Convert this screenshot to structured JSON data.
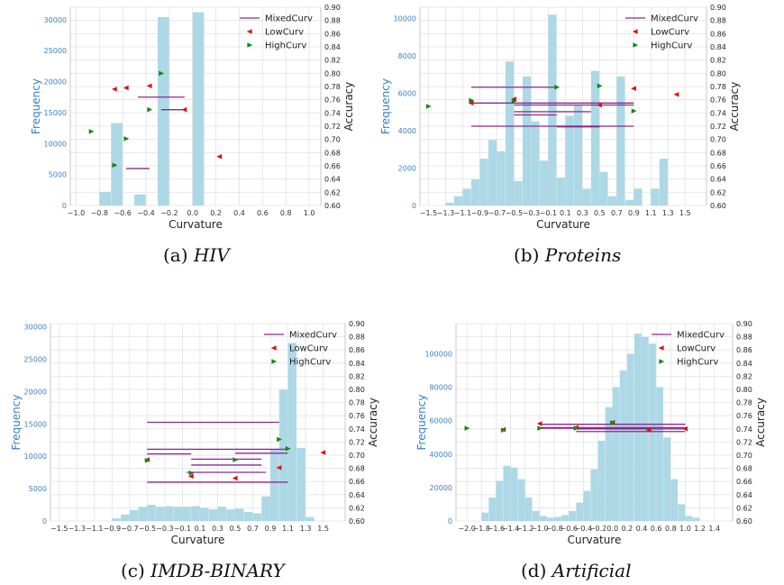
{
  "chart_data": [
    {
      "id": "a",
      "type": "bar",
      "caption_letter": "(a)",
      "caption_name": "HIV",
      "xlabel": "Curvature",
      "ylabel_left": "Frequency",
      "ylabel_right": "Accuracy",
      "xlim": [
        -1.05,
        1.1
      ],
      "ylim_left": [
        0,
        32000
      ],
      "ylim_right": [
        0.6,
        0.9
      ],
      "xticks": [
        -1.0,
        -0.8,
        -0.6,
        -0.4,
        -0.2,
        0.0,
        0.2,
        0.4,
        0.6,
        0.8,
        1.0
      ],
      "xtick_labels": [
        "−1.0",
        "−0.8",
        "−0.6",
        "−0.4",
        "−0.2",
        "0.0",
        "0.2",
        "0.4",
        "0.6",
        "0.8",
        "1.0"
      ],
      "yticks_left": [
        0,
        5000,
        10000,
        15000,
        20000,
        25000,
        30000
      ],
      "yticks_right": [
        0.6,
        0.62,
        0.64,
        0.66,
        0.68,
        0.7,
        0.72,
        0.74,
        0.76,
        0.78,
        0.8,
        0.82,
        0.84,
        0.86,
        0.88,
        0.9
      ],
      "ytick_right_labels": [
        "0.60",
        "0.62",
        "0.64",
        "0.66",
        "0.68",
        "0.70",
        "0.72",
        "0.74",
        "0.76",
        "0.78",
        "0.80",
        "0.82",
        "0.84",
        "0.86",
        "0.88",
        "0.90"
      ],
      "grid": true,
      "legend": [
        "MixedCurv",
        "LowCurv",
        "HighCurv"
      ],
      "legend_position": "top-right",
      "bin_width": 0.1,
      "histogram": [
        [
          -0.75,
          2200
        ],
        [
          -0.65,
          13300
        ],
        [
          -0.45,
          1800
        ],
        [
          -0.25,
          30400
        ],
        [
          0.05,
          31200
        ]
      ],
      "mixed": [
        [
          -0.57,
          -0.37,
          0.656
        ],
        [
          -0.47,
          -0.07,
          0.764
        ],
        [
          -0.27,
          -0.07,
          0.745
        ]
      ],
      "low": [
        [
          -0.67,
          0.776
        ],
        [
          -0.57,
          0.778
        ],
        [
          -0.37,
          0.781
        ],
        [
          -0.07,
          0.745
        ],
        [
          0.23,
          0.674
        ]
      ],
      "high": [
        [
          -0.87,
          0.712
        ],
        [
          -0.67,
          0.661
        ],
        [
          -0.57,
          0.701
        ],
        [
          -0.37,
          0.745
        ],
        [
          -0.27,
          0.8
        ]
      ]
    },
    {
      "id": "b",
      "type": "bar",
      "caption_letter": "(b)",
      "caption_name": "Proteins",
      "xlabel": "Curvature",
      "ylabel_left": "Frequency",
      "ylabel_right": "Accuracy",
      "xlim": [
        -1.6,
        1.75
      ],
      "ylim_left": [
        0,
        10600
      ],
      "ylim_right": [
        0.6,
        0.9
      ],
      "xticks": [
        -1.5,
        -1.3,
        -1.1,
        -0.9,
        -0.7,
        -0.5,
        -0.3,
        -0.1,
        0.1,
        0.3,
        0.5,
        0.7,
        0.9,
        1.1,
        1.3,
        1.5
      ],
      "xtick_labels": [
        "−1.5",
        "−1.3",
        "−1.1",
        "−0.9",
        "−0.7",
        "−0.5",
        "−0.3",
        "−0.1",
        "0.1",
        "0.3",
        "0.5",
        "0.7",
        "0.9",
        "1.1",
        "1.3",
        "1.5"
      ],
      "yticks_left": [
        0,
        2000,
        4000,
        6000,
        8000,
        10000
      ],
      "yticks_right": [
        0.6,
        0.62,
        0.64,
        0.66,
        0.68,
        0.7,
        0.72,
        0.74,
        0.76,
        0.78,
        0.8,
        0.82,
        0.84,
        0.86,
        0.88,
        0.9
      ],
      "ytick_right_labels": [
        "0.60",
        "0.62",
        "0.64",
        "0.66",
        "0.68",
        "0.70",
        "0.72",
        "0.74",
        "0.76",
        "0.78",
        "0.80",
        "0.82",
        "0.84",
        "0.86",
        "0.88",
        "0.90"
      ],
      "grid": true,
      "legend": [
        "MixedCurv",
        "LowCurv",
        "HighCurv"
      ],
      "legend_position": "top-right",
      "bin_width": 0.1,
      "histogram": [
        [
          -1.25,
          150
        ],
        [
          -1.15,
          500
        ],
        [
          -1.05,
          900
        ],
        [
          -0.95,
          1400
        ],
        [
          -0.85,
          2500
        ],
        [
          -0.75,
          3500
        ],
        [
          -0.65,
          2900
        ],
        [
          -0.55,
          7700
        ],
        [
          -0.45,
          1300
        ],
        [
          -0.35,
          6900
        ],
        [
          -0.25,
          4500
        ],
        [
          -0.15,
          2400
        ],
        [
          -0.05,
          10200
        ],
        [
          0.05,
          1500
        ],
        [
          0.15,
          4800
        ],
        [
          0.25,
          5400
        ],
        [
          0.35,
          900
        ],
        [
          0.45,
          7200
        ],
        [
          0.55,
          1800
        ],
        [
          0.65,
          500
        ],
        [
          0.75,
          6900
        ],
        [
          0.85,
          300
        ],
        [
          0.95,
          900
        ],
        [
          1.15,
          900
        ],
        [
          1.25,
          2500
        ]
      ],
      "mixed": [
        [
          -1.0,
          0.0,
          0.779
        ],
        [
          -1.0,
          0.9,
          0.755
        ],
        [
          -0.5,
          0.9,
          0.752
        ],
        [
          -0.5,
          0.4,
          0.742
        ],
        [
          -0.5,
          0.0,
          0.737
        ],
        [
          -1.0,
          0.9,
          0.72
        ],
        [
          0.0,
          0.5,
          0.72
        ],
        [
          0.0,
          0.5,
          0.719
        ]
      ],
      "low": [
        [
          -1.0,
          0.755
        ],
        [
          -0.5,
          0.761
        ],
        [
          0.5,
          0.752
        ],
        [
          0.9,
          0.777
        ],
        [
          1.4,
          0.768
        ]
      ],
      "high": [
        [
          -1.5,
          0.75
        ],
        [
          -1.0,
          0.759
        ],
        [
          -0.5,
          0.758
        ],
        [
          0.0,
          0.779
        ],
        [
          0.5,
          0.781
        ],
        [
          0.9,
          0.743
        ]
      ]
    },
    {
      "id": "c",
      "type": "bar",
      "caption_letter": "(c)",
      "caption_name": "IMDB-BINARY",
      "xlabel": "Curvature",
      "ylabel_left": "Frequency",
      "ylabel_right": "Accuracy",
      "xlim": [
        -1.6,
        1.75
      ],
      "ylim_left": [
        0,
        30500
      ],
      "ylim_right": [
        0.6,
        0.9
      ],
      "xticks": [
        -1.5,
        -1.3,
        -1.1,
        -0.9,
        -0.7,
        -0.5,
        -0.3,
        -0.1,
        0.1,
        0.3,
        0.5,
        0.7,
        0.9,
        1.1,
        1.3,
        1.5
      ],
      "xtick_labels": [
        "−1.5",
        "−1.3",
        "−1.1",
        "−0.9",
        "−0.7",
        "−0.5",
        "−0.3",
        "−0.1",
        "0.1",
        "0.3",
        "0.5",
        "0.7",
        "0.9",
        "1.1",
        "1.3",
        "1.5"
      ],
      "yticks_left": [
        0,
        5000,
        10000,
        15000,
        20000,
        25000,
        30000
      ],
      "yticks_right": [
        0.6,
        0.62,
        0.64,
        0.66,
        0.68,
        0.7,
        0.72,
        0.74,
        0.76,
        0.78,
        0.8,
        0.82,
        0.84,
        0.86,
        0.88,
        0.9
      ],
      "ytick_right_labels": [
        "0.60",
        "0.62",
        "0.64",
        "0.66",
        "0.68",
        "0.70",
        "0.72",
        "0.74",
        "0.76",
        "0.78",
        "0.80",
        "0.82",
        "0.84",
        "0.86",
        "0.88",
        "0.90"
      ],
      "grid": true,
      "legend": [
        "MixedCurv",
        "LowCurv",
        "HighCurv"
      ],
      "legend_position": "top-right",
      "bin_width": 0.1,
      "histogram": [
        [
          -0.85,
          400
        ],
        [
          -0.75,
          1000
        ],
        [
          -0.65,
          1700
        ],
        [
          -0.55,
          2200
        ],
        [
          -0.45,
          2500
        ],
        [
          -0.35,
          2200
        ],
        [
          -0.25,
          2300
        ],
        [
          -0.15,
          2200
        ],
        [
          -0.05,
          2200
        ],
        [
          0.05,
          2300
        ],
        [
          0.15,
          2000
        ],
        [
          0.25,
          1800
        ],
        [
          0.35,
          2200
        ],
        [
          0.45,
          1800
        ],
        [
          0.55,
          1900
        ],
        [
          0.65,
          1400
        ],
        [
          0.75,
          1200
        ],
        [
          0.85,
          3800
        ],
        [
          0.95,
          11000
        ],
        [
          1.05,
          20300
        ],
        [
          1.15,
          27500
        ],
        [
          1.25,
          11300
        ],
        [
          1.35,
          600
        ]
      ],
      "mixed": [
        [
          -0.5,
          1.0,
          0.75
        ],
        [
          -0.5,
          1.1,
          0.709
        ],
        [
          0.5,
          1.1,
          0.703
        ],
        [
          -0.5,
          0.0,
          0.702
        ],
        [
          0.0,
          0.8,
          0.694
        ],
        [
          0.0,
          0.8,
          0.685
        ],
        [
          -0.05,
          0.85,
          0.674
        ],
        [
          -0.5,
          1.1,
          0.659
        ]
      ],
      "low": [
        [
          -0.5,
          0.693
        ],
        [
          0.0,
          0.668
        ],
        [
          0.5,
          0.665
        ],
        [
          1.0,
          0.681
        ],
        [
          1.5,
          0.704
        ]
      ],
      "high": [
        [
          -0.5,
          0.692
        ],
        [
          0.0,
          0.673
        ],
        [
          0.5,
          0.693
        ],
        [
          1.0,
          0.724
        ],
        [
          1.1,
          0.71
        ]
      ]
    },
    {
      "id": "d",
      "type": "bar",
      "caption_letter": "(d)",
      "caption_name": "Artificial",
      "xlabel": "Curvature",
      "ylabel_left": "Frequency",
      "ylabel_right": "Accuracy",
      "xlim": [
        -2.15,
        1.65
      ],
      "ylim_left": [
        0,
        118000
      ],
      "ylim_right": [
        0.6,
        0.9
      ],
      "xticks": [
        -2.0,
        -1.8,
        -1.6,
        -1.4,
        -1.2,
        -1.0,
        -0.8,
        -0.6,
        -0.4,
        -0.2,
        0.0,
        0.2,
        0.4,
        0.6,
        0.8,
        1.0,
        1.2,
        1.4
      ],
      "xtick_labels": [
        "−2.0",
        "−1.8",
        "−1.6",
        "−1.4",
        "−1.2",
        "−1.0",
        "−0.8",
        "−0.6",
        "−0.4",
        "−0.2",
        "0.0",
        "0.2",
        "0.4",
        "0.6",
        "0.8",
        "1.0",
        "1.2",
        "1.4"
      ],
      "yticks_left": [
        0,
        20000,
        40000,
        60000,
        80000,
        100000
      ],
      "yticks_right": [
        0.6,
        0.62,
        0.64,
        0.66,
        0.68,
        0.7,
        0.72,
        0.74,
        0.76,
        0.78,
        0.8,
        0.82,
        0.84,
        0.86,
        0.88,
        0.9
      ],
      "ytick_right_labels": [
        "0.60",
        "0.62",
        "0.64",
        "0.66",
        "0.68",
        "0.70",
        "0.72",
        "0.74",
        "0.76",
        "0.78",
        "0.80",
        "0.82",
        "0.84",
        "0.86",
        "0.88",
        "0.90"
      ],
      "grid": true,
      "legend": [
        "MixedCurv",
        "LowCurv",
        "HighCurv"
      ],
      "legend_position": "top-right",
      "bin_width": 0.1,
      "histogram": [
        [
          -1.75,
          5000
        ],
        [
          -1.65,
          14000
        ],
        [
          -1.55,
          24000
        ],
        [
          -1.45,
          33000
        ],
        [
          -1.35,
          32000
        ],
        [
          -1.25,
          25000
        ],
        [
          -1.15,
          14000
        ],
        [
          -1.05,
          6000
        ],
        [
          -0.95,
          3000
        ],
        [
          -0.85,
          2000
        ],
        [
          -0.75,
          2500
        ],
        [
          -0.65,
          3500
        ],
        [
          -0.55,
          6000
        ],
        [
          -0.45,
          11000
        ],
        [
          -0.35,
          18000
        ],
        [
          -0.25,
          31000
        ],
        [
          -0.15,
          48000
        ],
        [
          -0.05,
          68000
        ],
        [
          0.05,
          80000
        ],
        [
          0.15,
          90000
        ],
        [
          0.25,
          100000
        ],
        [
          0.35,
          112000
        ],
        [
          0.45,
          110000
        ],
        [
          0.55,
          106000
        ],
        [
          0.65,
          80000
        ],
        [
          0.75,
          50000
        ],
        [
          0.85,
          25000
        ],
        [
          0.95,
          10000
        ],
        [
          1.05,
          3000
        ],
        [
          1.15,
          2000
        ]
      ],
      "mixed": [
        [
          -1.0,
          1.0,
          0.747
        ],
        [
          -1.0,
          1.0,
          0.742
        ],
        [
          -1.0,
          0.5,
          0.741
        ],
        [
          -0.5,
          1.0,
          0.74
        ],
        [
          -0.5,
          1.0,
          0.736
        ]
      ],
      "low": [
        [
          -1.5,
          0.739
        ],
        [
          -1.0,
          0.748
        ],
        [
          -0.5,
          0.742
        ],
        [
          0.0,
          0.75
        ],
        [
          0.5,
          0.738
        ],
        [
          1.0,
          0.74
        ]
      ],
      "high": [
        [
          -2.0,
          0.741
        ],
        [
          -1.5,
          0.738
        ],
        [
          -1.0,
          0.741
        ],
        [
          -0.5,
          0.741
        ],
        [
          0.0,
          0.749
        ]
      ]
    }
  ]
}
